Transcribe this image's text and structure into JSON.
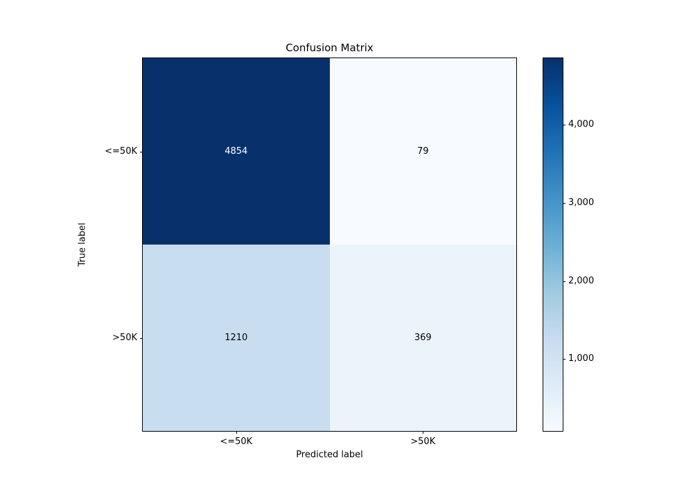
{
  "title": "Confusion Matrix",
  "axes": {
    "xlabel": "Predicted label",
    "ylabel": "True label",
    "xticks": [
      "<=50K",
      ">50K"
    ],
    "yticks": [
      "<=50K",
      ">50K"
    ]
  },
  "chart_data": {
    "type": "heatmap",
    "title": "Confusion Matrix",
    "xlabel": "Predicted label",
    "ylabel": "True label",
    "x_categories": [
      "<=50K",
      ">50K"
    ],
    "y_categories": [
      "<=50K",
      ">50K"
    ],
    "matrix": [
      [
        4854,
        79
      ],
      [
        1210,
        369
      ]
    ],
    "colormap": "Blues",
    "vmin": 79,
    "vmax": 4854,
    "colorbar": {
      "tick_values": [
        1000,
        2000,
        3000,
        4000
      ],
      "tick_labels": [
        "1,000",
        "2,000",
        "3,000",
        "4,000"
      ],
      "position": "right"
    },
    "grid": false,
    "legend": false
  },
  "styles": {
    "cell_colors": [
      [
        "#08306b",
        "#f7fbff"
      ],
      [
        "#c8ddf0",
        "#ebf3fb"
      ]
    ],
    "cell_text_colors": [
      [
        "#ffffff",
        "#000000"
      ],
      [
        "#000000",
        "#000000"
      ]
    ],
    "colorbar_gradient_top_to_bottom": [
      "#08306b",
      "#08519c",
      "#2171b5",
      "#4292c6",
      "#6baed6",
      "#9ecae1",
      "#c6dbef",
      "#deebf7",
      "#f7fbff"
    ],
    "spine_color": "#000000",
    "background_color": "#ffffff"
  }
}
